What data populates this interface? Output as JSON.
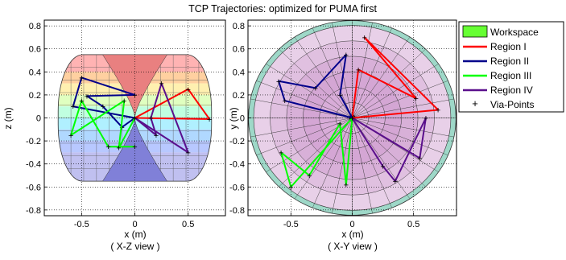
{
  "title": "TCP Trajectories: optimized for PUMA first",
  "colors": {
    "region_1": "#ff0000",
    "region_2": "#00008b",
    "region_3": "#00ff00",
    "region_4": "#5a0f8c",
    "workspace": "#66ff33",
    "via": "#000000"
  },
  "legend": {
    "workspace": "Workspace",
    "region_1": "Region I",
    "region_2": "Region II",
    "region_3": "Region III",
    "region_4": "Region IV",
    "via": "Via-Points"
  },
  "chart_data": [
    {
      "type": "line",
      "view": "X-Z",
      "xlabel": "x (m)",
      "ylabel": "z (m)",
      "caption": "( X-Z view )",
      "xlim": [
        -0.85,
        0.85
      ],
      "ylim": [
        -0.85,
        0.85
      ],
      "xticks": [
        "-0.5",
        "0",
        "0.5"
      ],
      "yticks": [
        "-0.8",
        "-0.6",
        "-0.4",
        "-0.2",
        "0",
        "0.2",
        "0.4",
        "0.6",
        "0.8"
      ],
      "grid": true,
      "series": [
        {
          "name": "Region I",
          "color": "#ff0000",
          "points": [
            [
              0.0,
              0.0
            ],
            [
              0.7,
              -0.01
            ],
            [
              0.5,
              0.25
            ],
            [
              0.0,
              0.0
            ]
          ]
        },
        {
          "name": "Region II",
          "color": "#00008b",
          "points": [
            [
              0.0,
              0.0
            ],
            [
              -0.58,
              0.1
            ],
            [
              -0.5,
              0.35
            ],
            [
              0.0,
              0.2
            ],
            [
              -0.45,
              0.19
            ],
            [
              -0.3,
              0.1
            ],
            [
              -0.12,
              -0.08
            ],
            [
              0.0,
              0.0
            ]
          ]
        },
        {
          "name": "Region III",
          "color": "#00ff00",
          "points": [
            [
              0.0,
              0.0
            ],
            [
              -0.15,
              -0.26
            ],
            [
              -0.1,
              0.15
            ],
            [
              -0.6,
              -0.15
            ],
            [
              -0.5,
              0.15
            ],
            [
              -0.25,
              -0.25
            ],
            [
              0.0,
              -0.25
            ]
          ]
        },
        {
          "name": "Region IV",
          "color": "#5a0f8c",
          "points": [
            [
              0.0,
              0.0
            ],
            [
              0.5,
              -0.3
            ],
            [
              0.25,
              0.3
            ],
            [
              0.15,
              0.0
            ],
            [
              0.2,
              -0.15
            ],
            [
              0.0,
              0.0
            ]
          ]
        }
      ]
    },
    {
      "type": "line",
      "view": "X-Y",
      "xlabel": "x (m)",
      "ylabel": "y (m)",
      "caption": "( X-Y view )",
      "xlim": [
        -0.85,
        0.85
      ],
      "ylim": [
        -0.85,
        0.85
      ],
      "xticks": [
        "-0.5",
        "0",
        "0.5"
      ],
      "yticks": [
        "-0.8",
        "-0.6",
        "-0.4",
        "-0.2",
        "0",
        "0.2",
        "0.4",
        "0.6",
        "0.8"
      ],
      "grid": true,
      "series": [
        {
          "name": "Region I",
          "color": "#ff0000",
          "points": [
            [
              0.0,
              0.0
            ],
            [
              0.05,
              0.42
            ],
            [
              0.52,
              0.17
            ],
            [
              0.1,
              0.7
            ],
            [
              0.7,
              0.07
            ],
            [
              0.0,
              0.0
            ]
          ]
        },
        {
          "name": "Region II",
          "color": "#00008b",
          "points": [
            [
              0.0,
              0.0
            ],
            [
              -0.55,
              0.15
            ],
            [
              -0.6,
              0.32
            ],
            [
              -0.3,
              0.26
            ],
            [
              -0.05,
              0.55
            ],
            [
              -0.1,
              0.2
            ],
            [
              0.0,
              0.0
            ]
          ]
        },
        {
          "name": "Region III",
          "color": "#00ff00",
          "points": [
            [
              0.0,
              0.0
            ],
            [
              -0.5,
              -0.6
            ],
            [
              -0.58,
              -0.3
            ],
            [
              -0.35,
              -0.5
            ],
            [
              -0.1,
              -0.05
            ],
            [
              -0.05,
              -0.58
            ],
            [
              0.0,
              0.0
            ]
          ]
        },
        {
          "name": "Region IV",
          "color": "#5a0f8c",
          "points": [
            [
              0.0,
              0.0
            ],
            [
              0.55,
              -0.35
            ],
            [
              0.6,
              0.0
            ],
            [
              0.35,
              -0.55
            ],
            [
              0.25,
              -0.42
            ],
            [
              0.0,
              0.0
            ]
          ]
        }
      ]
    }
  ]
}
